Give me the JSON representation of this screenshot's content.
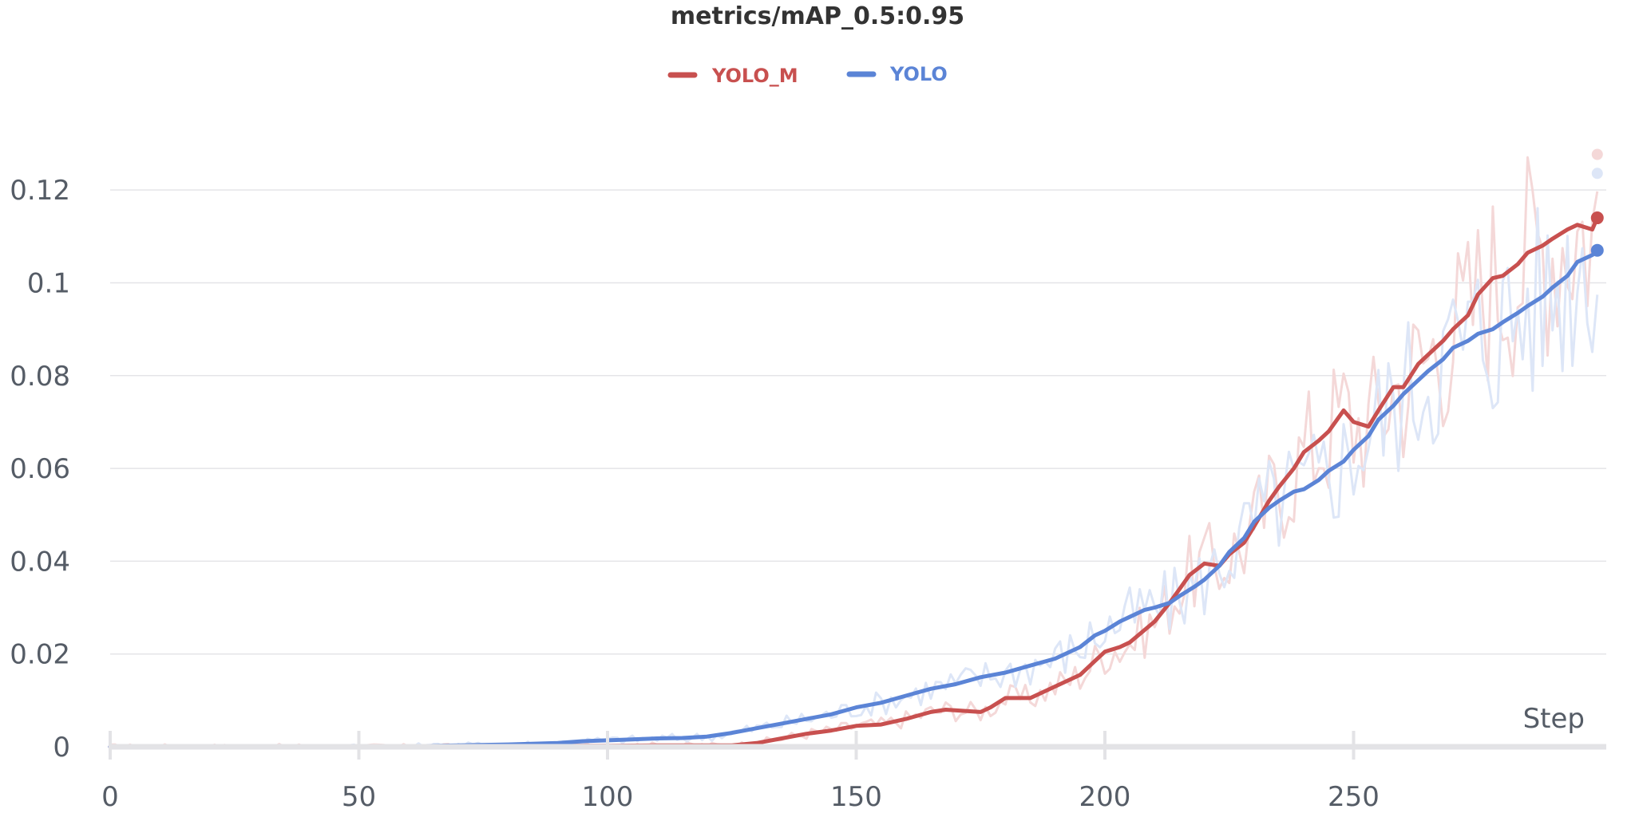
{
  "chart_data": {
    "type": "line",
    "title": "metrics/mAP_0.5:0.95",
    "xlabel": "Step",
    "ylabel": "",
    "xlim": [
      0,
      300
    ],
    "ylim": [
      0,
      0.13
    ],
    "x_ticks": [
      0,
      50,
      100,
      150,
      200,
      250
    ],
    "x_tick_labels": [
      "0",
      "50",
      "100",
      "150",
      "200",
      "250"
    ],
    "y_ticks": [
      0,
      0.02,
      0.04,
      0.06,
      0.08,
      0.1,
      0.12
    ],
    "y_tick_labels": [
      "0",
      "0.02",
      "0.04",
      "0.06",
      "0.08",
      "0.1",
      "0.12"
    ],
    "grid": true,
    "legend_position": "top-center",
    "series": [
      {
        "name": "YOLO_M",
        "color": "#c8504f",
        "raw_color": "#f4d8d8",
        "x": [
          0,
          20,
          40,
          60,
          80,
          90,
          100,
          110,
          120,
          125,
          130,
          135,
          140,
          145,
          150,
          155,
          160,
          165,
          168,
          175,
          177,
          180,
          185,
          190,
          195,
          198,
          200,
          203,
          205,
          210,
          213,
          215,
          217,
          220,
          223,
          225,
          228,
          230,
          233,
          235,
          238,
          240,
          243,
          245,
          248,
          250,
          253,
          255,
          258,
          260,
          263,
          265,
          268,
          270,
          273,
          275,
          278,
          280,
          283,
          285,
          288,
          290,
          293,
          295,
          298,
          299
        ],
        "values": [
          0,
          0,
          0,
          0,
          0.0001,
          0.0002,
          0.0002,
          0.0003,
          0.0003,
          0.0003,
          0.0008,
          0.0018,
          0.0028,
          0.0035,
          0.0045,
          0.0048,
          0.006,
          0.0075,
          0.008,
          0.0075,
          0.0085,
          0.0105,
          0.0105,
          0.013,
          0.0155,
          0.0185,
          0.0205,
          0.0215,
          0.0225,
          0.027,
          0.031,
          0.034,
          0.037,
          0.0395,
          0.039,
          0.0415,
          0.044,
          0.0475,
          0.053,
          0.056,
          0.06,
          0.0635,
          0.066,
          0.068,
          0.0725,
          0.07,
          0.069,
          0.0725,
          0.0775,
          0.0775,
          0.0825,
          0.0845,
          0.0875,
          0.09,
          0.093,
          0.0975,
          0.101,
          0.1015,
          0.104,
          0.1065,
          0.108,
          0.1095,
          0.1115,
          0.1125,
          0.1115,
          0.114
        ]
      },
      {
        "name": "YOLO",
        "color": "#5b84d6",
        "raw_color": "#dde6f7",
        "x": [
          0,
          20,
          40,
          60,
          70,
          80,
          90,
          95,
          100,
          105,
          110,
          115,
          120,
          125,
          130,
          135,
          140,
          145,
          150,
          155,
          160,
          165,
          170,
          175,
          180,
          185,
          190,
          195,
          198,
          200,
          203,
          205,
          208,
          210,
          213,
          215,
          218,
          220,
          223,
          225,
          228,
          230,
          233,
          235,
          238,
          240,
          243,
          245,
          248,
          250,
          253,
          255,
          258,
          260,
          263,
          265,
          268,
          270,
          273,
          275,
          278,
          280,
          283,
          285,
          288,
          290,
          293,
          295,
          298,
          299
        ],
        "values": [
          0,
          0,
          0,
          0.0001,
          0.0003,
          0.0005,
          0.0008,
          0.0012,
          0.0014,
          0.0016,
          0.0018,
          0.0019,
          0.0022,
          0.003,
          0.004,
          0.005,
          0.006,
          0.007,
          0.0085,
          0.0095,
          0.011,
          0.0125,
          0.0135,
          0.015,
          0.016,
          0.0175,
          0.019,
          0.0215,
          0.024,
          0.025,
          0.027,
          0.028,
          0.0295,
          0.03,
          0.031,
          0.0325,
          0.0345,
          0.036,
          0.039,
          0.042,
          0.045,
          0.0485,
          0.0515,
          0.053,
          0.055,
          0.0555,
          0.0575,
          0.0595,
          0.0615,
          0.064,
          0.067,
          0.0705,
          0.0735,
          0.076,
          0.079,
          0.081,
          0.0835,
          0.086,
          0.0875,
          0.089,
          0.09,
          0.0915,
          0.0935,
          0.095,
          0.097,
          0.099,
          0.1015,
          0.1045,
          0.106,
          0.107
        ]
      }
    ]
  }
}
